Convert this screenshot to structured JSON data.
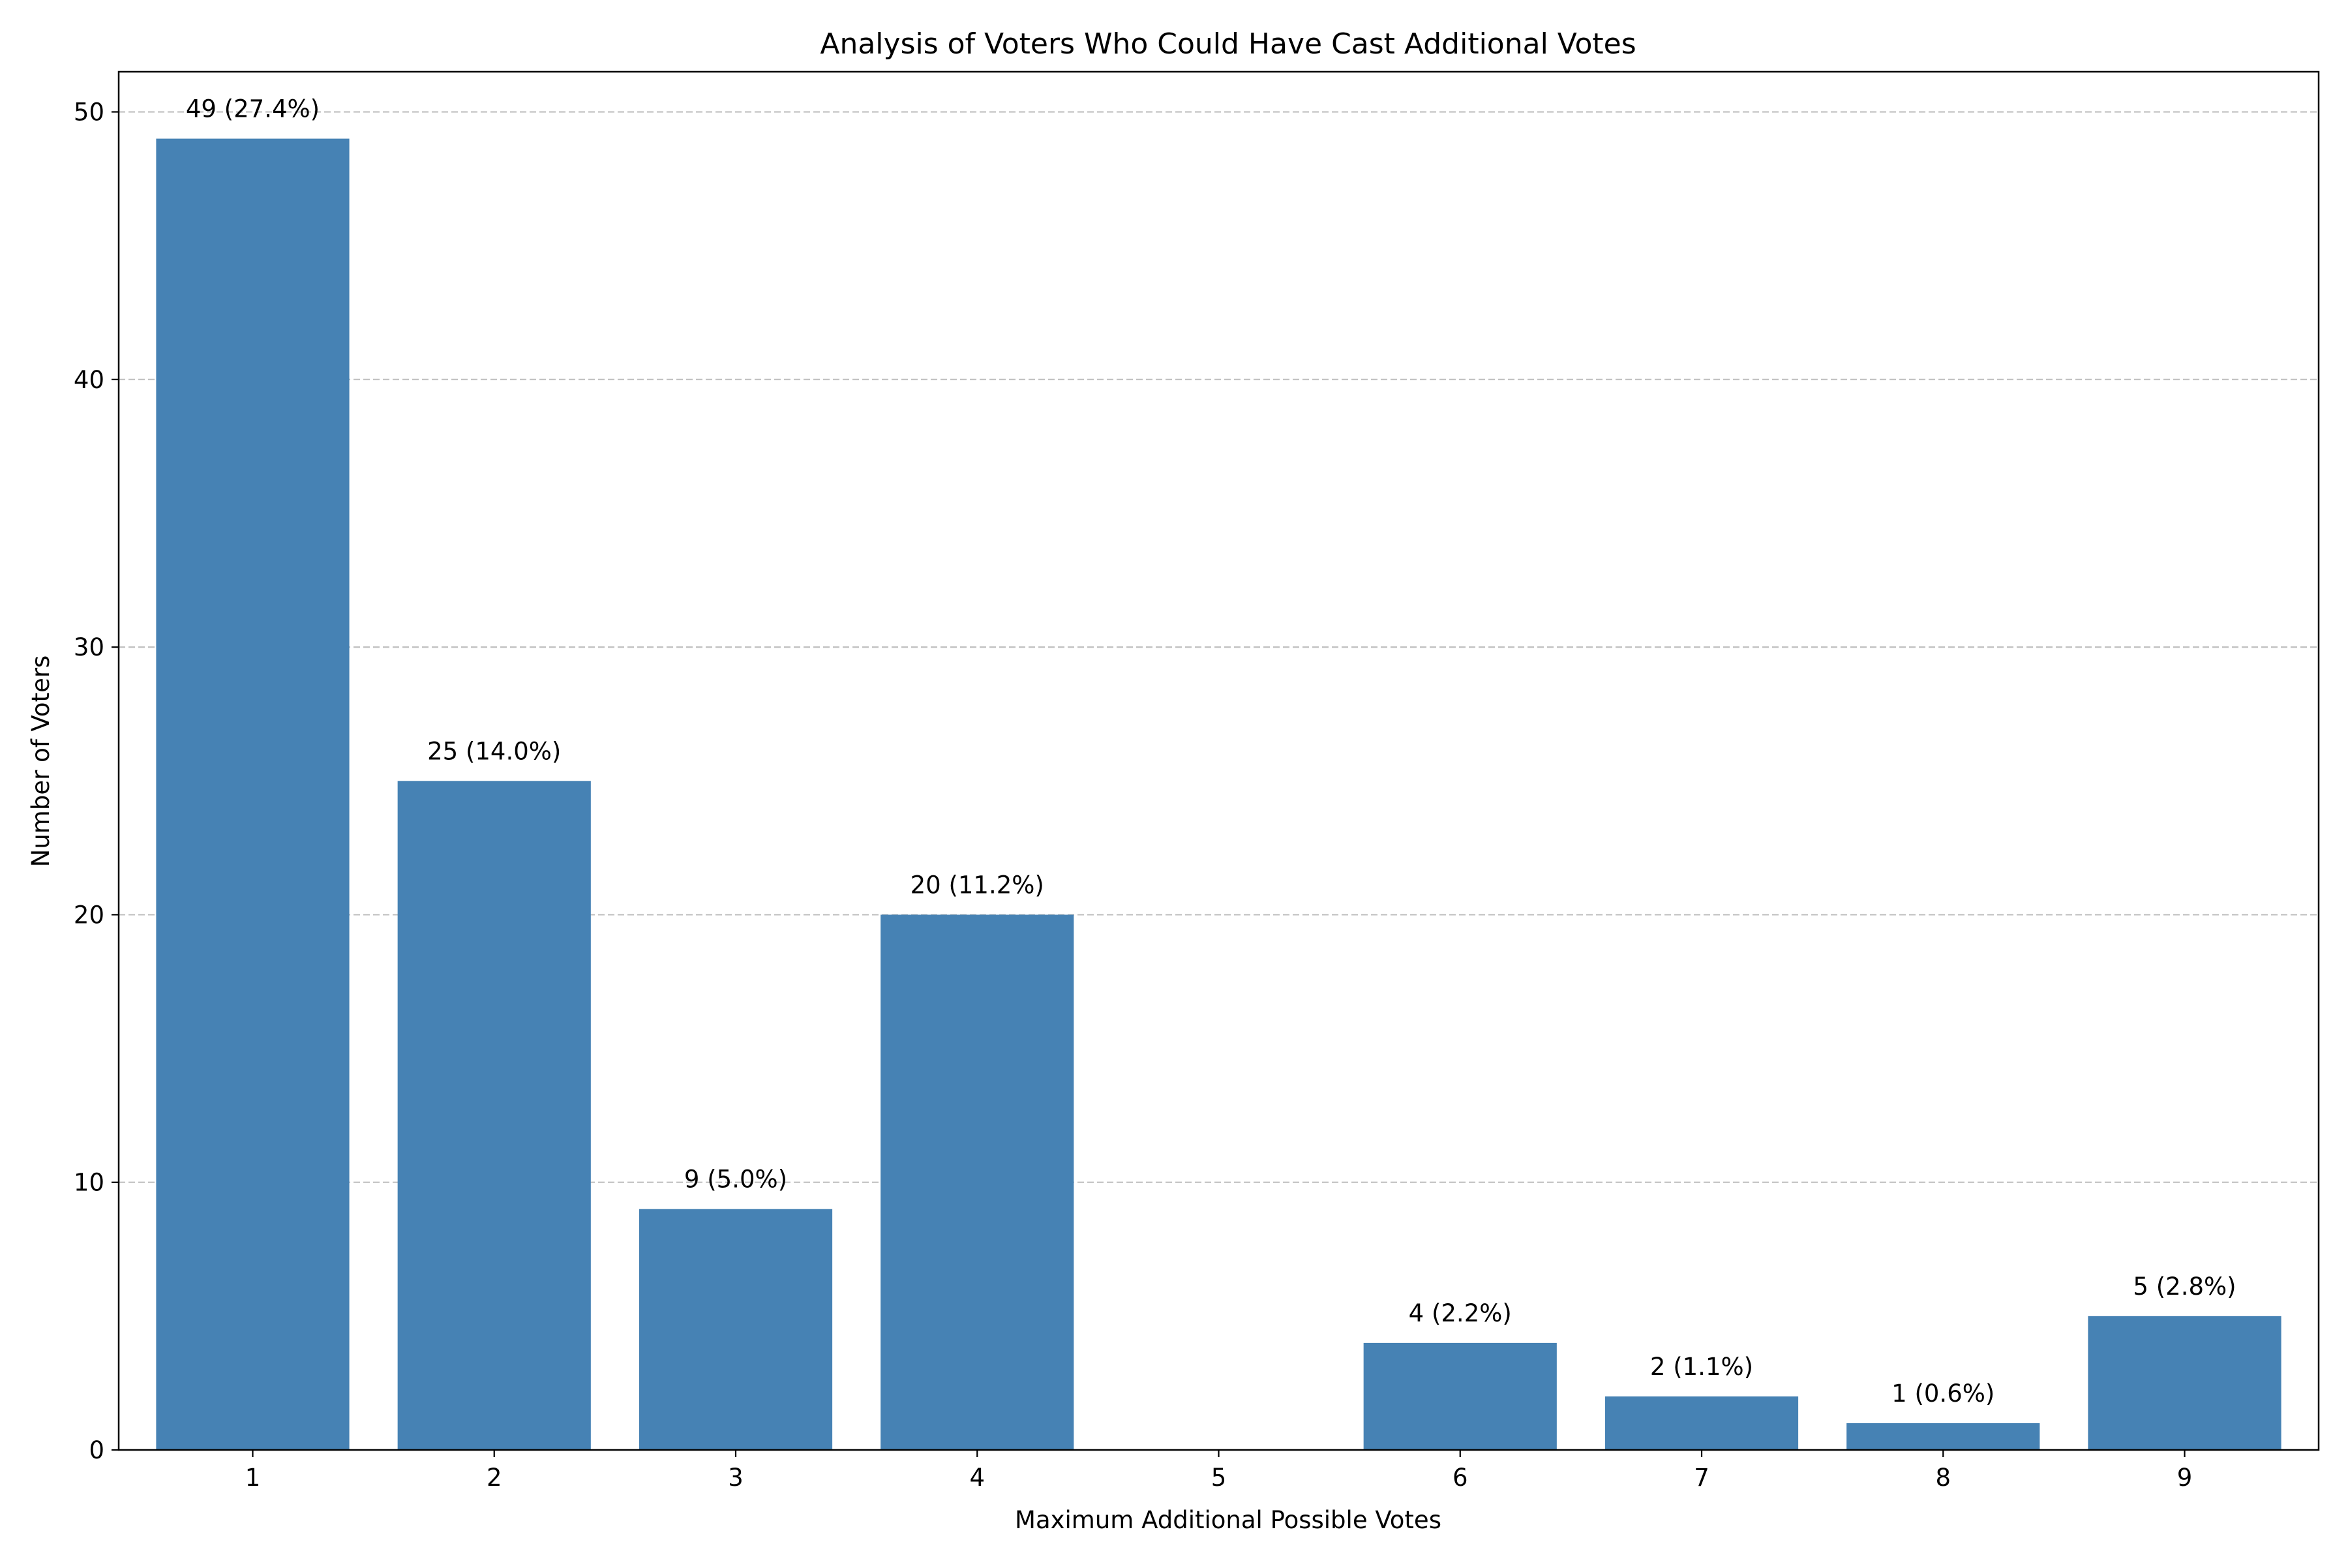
{
  "chart_data": {
    "type": "bar",
    "title": "Analysis of Voters Who Could Have Cast Additional Votes",
    "xlabel": "Maximum Additional Possible Votes",
    "ylabel": "Number of Voters",
    "categories": [
      "1",
      "2",
      "3",
      "4",
      "5",
      "6",
      "7",
      "8",
      "9"
    ],
    "values": [
      49,
      25,
      9,
      20,
      0,
      4,
      2,
      1,
      5
    ],
    "data_labels": [
      "49 (27.4%)",
      "25 (14.0%)",
      "9 (5.0%)",
      "20 (11.2%)",
      "",
      "4 (2.2%)",
      "2 (1.1%)",
      "1 (0.6%)",
      "5 (2.8%)"
    ],
    "ylim": [
      0,
      51.5
    ],
    "yticks": [
      0,
      10,
      20,
      30,
      40,
      50
    ],
    "ytick_labels": [
      "0",
      "10",
      "20",
      "30",
      "40",
      "50"
    ],
    "grid": {
      "y": true,
      "x": false,
      "style": "dashed"
    },
    "legend": "none",
    "bar_color": "#4682b4",
    "grid_color": "#c0c0c0"
  }
}
